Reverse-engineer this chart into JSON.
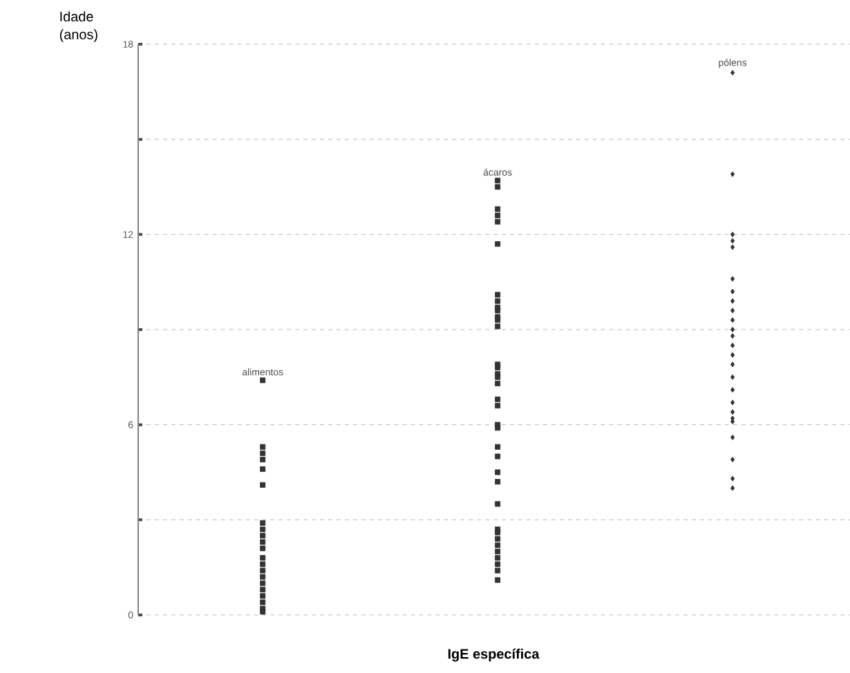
{
  "chart_data": {
    "type": "scatter",
    "xlabel": "**IgE específica**",
    "ylabel": "Idade (anos)",
    "categories": [
      "alimentos",
      "ácaros",
      "pólens"
    ],
    "series": [
      {
        "color": "#333333",
        "marker": "square",
        "x": [
          "alimentos",
          "alimentos",
          "alimentos",
          "alimentos",
          "alimentos",
          "alimentos",
          "alimentos",
          "alimentos",
          "alimentos",
          "alimentos",
          "alimentos",
          "alimentos",
          "alimentos",
          "alimentos",
          "alimentos",
          "alimentos",
          "alimentos",
          "alimentos",
          "alimentos",
          "alimentos",
          "alimentos"
        ],
        "values": [
          7.4,
          5.3,
          5.1,
          4.9,
          4.6,
          4.1,
          2.9,
          2.7,
          2.5,
          2.3,
          2.1,
          1.8,
          1.6,
          1.4,
          1.2,
          1.0,
          0.8,
          0.6,
          0.4,
          0.2,
          0.1
        ]
      },
      {
        "color": "#333333",
        "marker": "square",
        "x": [
          "ácaros",
          "ácaros",
          "ácaros",
          "ácaros",
          "ácaros",
          "ácaros",
          "ácaros",
          "ácaros",
          "ácaros",
          "ácaros",
          "ácaros",
          "ácaros",
          "ácaros",
          "ácaros",
          "ácaros",
          "ácaros",
          "ácaros",
          "ácaros",
          "ácaros",
          "ácaros",
          "ácaros",
          "ácaros",
          "ácaros",
          "ácaros",
          "ácaros",
          "ácaros",
          "ácaros",
          "ácaros",
          "ácaros",
          "ácaros",
          "ácaros",
          "ácaros",
          "ácaros",
          "ácaros",
          "ácaros",
          "ácaros"
        ],
        "values": [
          13.7,
          13.5,
          12.8,
          12.6,
          12.4,
          11.7,
          10.1,
          9.9,
          9.7,
          9.6,
          9.4,
          9.3,
          9.1,
          7.9,
          7.8,
          7.6,
          7.5,
          7.3,
          6.8,
          6.6,
          6.0,
          5.9,
          5.3,
          5.0,
          4.5,
          4.2,
          3.5,
          2.7,
          2.6,
          2.4,
          2.2,
          2.0,
          1.8,
          1.6,
          1.4,
          1.1
        ]
      },
      {
        "color": "#333333",
        "marker": "diamond",
        "x": [
          "pólens",
          "pólens",
          "pólens",
          "pólens",
          "pólens",
          "pólens",
          "pólens",
          "pólens",
          "pólens",
          "pólens",
          "pólens",
          "pólens",
          "pólens",
          "pólens",
          "pólens",
          "pólens",
          "pólens",
          "pólens",
          "pólens",
          "pólens",
          "pólens",
          "pólens",
          "pólens",
          "pólens",
          "pólens"
        ],
        "values": [
          17.1,
          13.9,
          12.0,
          11.8,
          11.6,
          10.6,
          10.2,
          9.9,
          9.6,
          9.3,
          9.0,
          8.8,
          8.5,
          8.2,
          7.9,
          7.5,
          7.1,
          6.7,
          6.4,
          6.2,
          6.1,
          5.6,
          4.9,
          4.3,
          4.0
        ]
      }
    ],
    "ylim": [
      0,
      18
    ],
    "yticks": [
      0,
      {
        "value": 3,
        "label": null
      },
      6,
      {
        "value": 9,
        "label": null
      },
      12,
      {
        "value": 15,
        "label": null
      },
      18
    ],
    "grid": "y"
  }
}
